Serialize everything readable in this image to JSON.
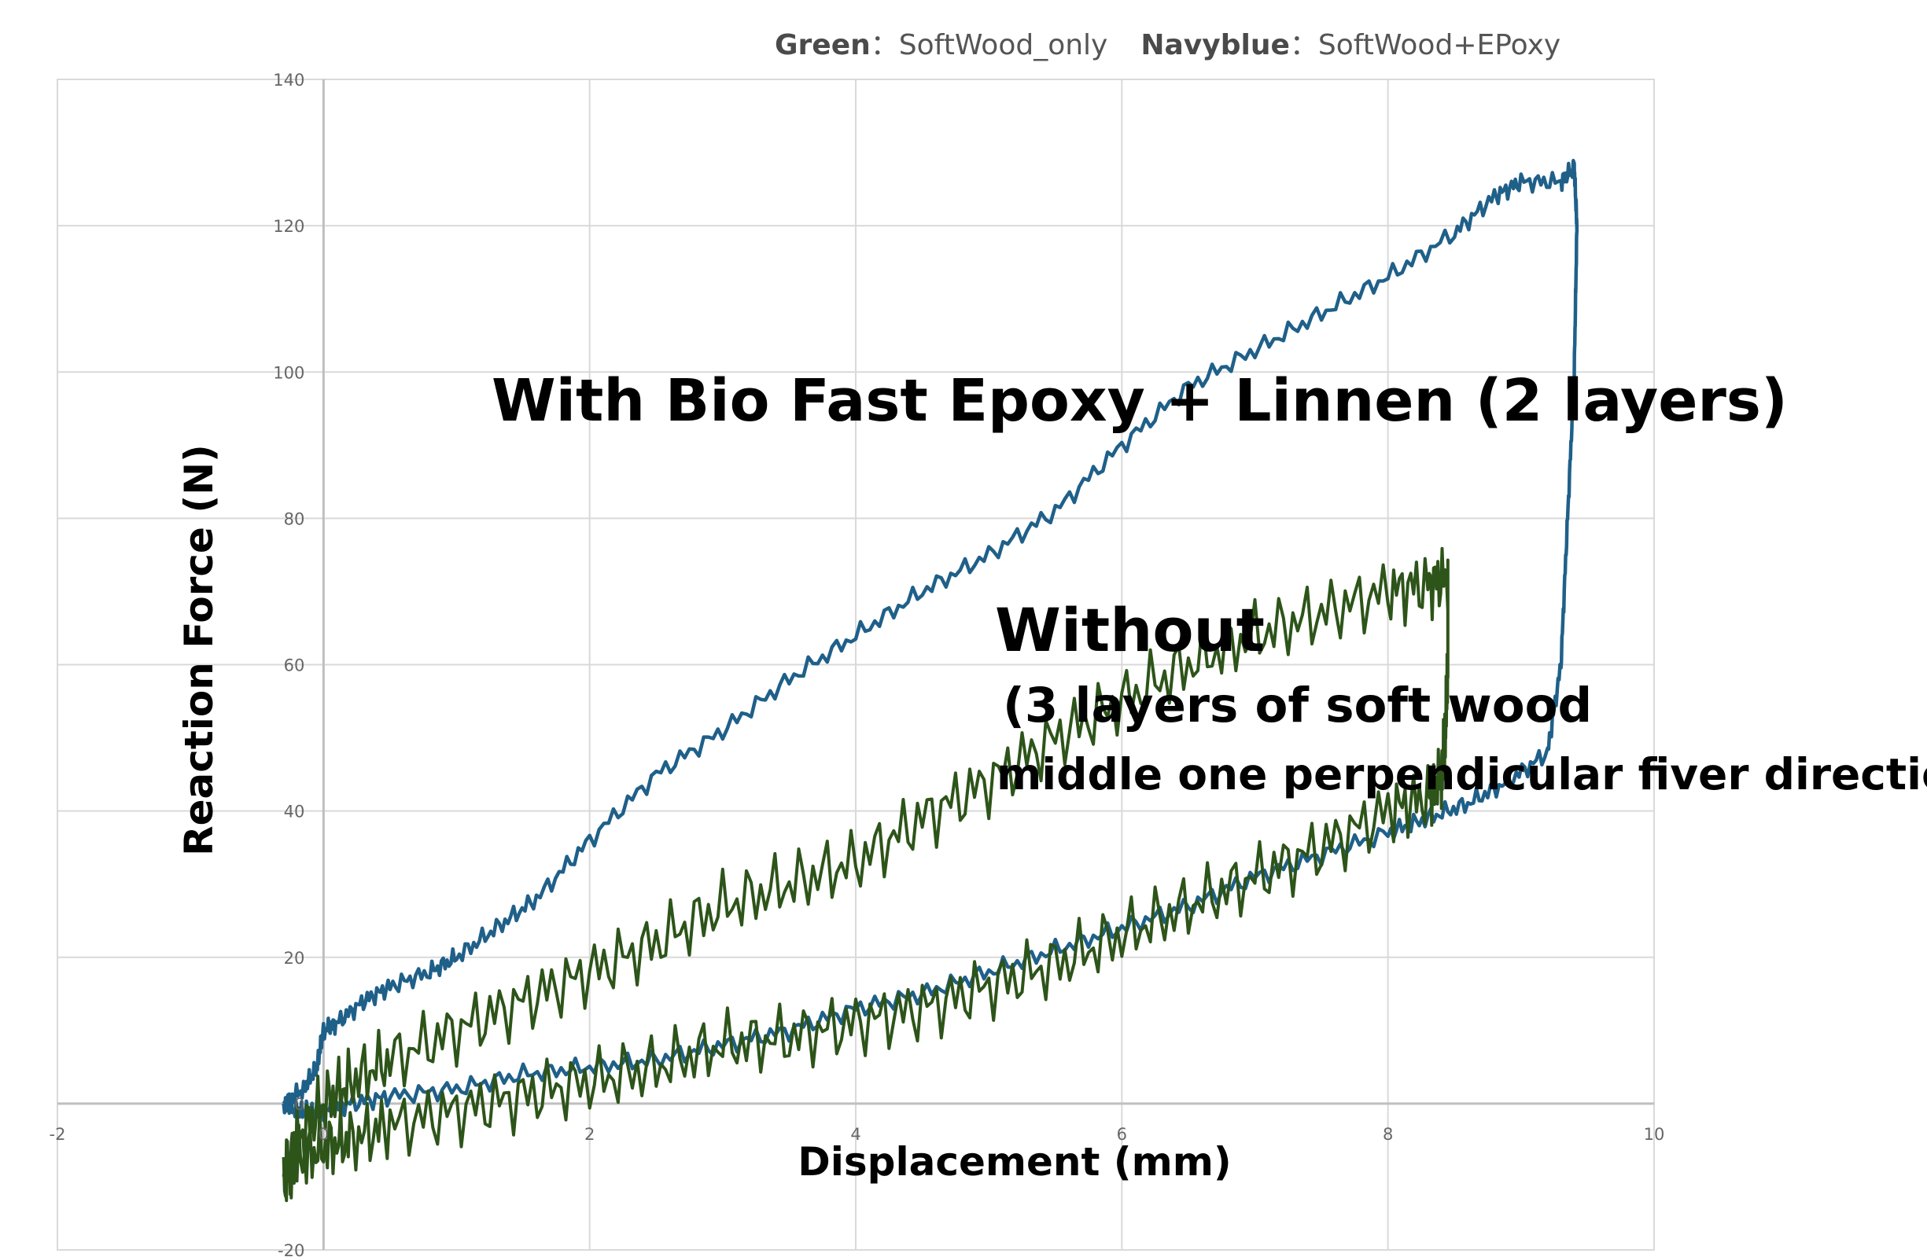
{
  "legend": {
    "green_key": "Green",
    "green_sep": "：",
    "green_text": "SoftWood_only",
    "navy_key": "Navyblue",
    "navy_sep": "：",
    "navy_text": "SoftWood+EPoxy"
  },
  "chart_data": {
    "type": "line",
    "xlabel": "Displacement (mm)",
    "ylabel": "Reaction Force (N)",
    "xlim": [
      -2,
      10
    ],
    "ylim": [
      -20,
      140
    ],
    "xticks": [
      -2,
      0,
      2,
      4,
      6,
      8,
      10
    ],
    "yticks": [
      -20,
      0,
      20,
      40,
      60,
      80,
      100,
      120,
      140
    ],
    "xtick_labels": [
      "-2",
      "0",
      "2",
      "4",
      "6",
      "8",
      "10"
    ],
    "ytick_labels": [
      "-20",
      "0",
      "20",
      "40",
      "60",
      "80",
      "100",
      "120",
      "140"
    ],
    "grid": true,
    "legend_position": "top",
    "annotations": [
      "With Bio Fast Epoxy + Linnen (2 layers)",
      "Without",
      "(3 layers of soft wood",
      "middle one perpendicular fiver direction)"
    ],
    "series": [
      {
        "color": "#1f6089",
        "x": [
          -0.3,
          -0.15,
          -0.05,
          0.0,
          0.1,
          0.3,
          0.5,
          0.8,
          1.0,
          1.3,
          1.6,
          2.0,
          2.5,
          3.0,
          3.5,
          4.0,
          4.5,
          5.0,
          5.5,
          6.0,
          6.5,
          7.0,
          7.5,
          8.0,
          8.5,
          8.8,
          9.0,
          9.3,
          9.4,
          9.42,
          9.4,
          9.35,
          9.3,
          9.2,
          8.9,
          8.6,
          8.3,
          8.0,
          7.5,
          7.0,
          6.5,
          6.0,
          5.5,
          5.0,
          4.5,
          4.0,
          3.5,
          3.0,
          2.5,
          2.0,
          1.5,
          1.0,
          0.5,
          0.2,
          0.0,
          -0.1,
          -0.2,
          -0.3
        ],
        "y": [
          0,
          2,
          5,
          10,
          11,
          14,
          16,
          18,
          20,
          24,
          28,
          36,
          45,
          51,
          58,
          64,
          70,
          75,
          81,
          90,
          98,
          103,
          108,
          113,
          119,
          124,
          126,
          126,
          128,
          120,
          100,
          80,
          60,
          48,
          44,
          41,
          39,
          37,
          34,
          31,
          27,
          24,
          21,
          18,
          15,
          13,
          10,
          8,
          6,
          5,
          4,
          2,
          1,
          0,
          -1,
          -1,
          -1,
          0
        ]
      },
      {
        "color": "#2d5419",
        "x": [
          -0.3,
          -0.2,
          0.0,
          0.2,
          0.5,
          1.0,
          1.5,
          2.0,
          2.5,
          3.0,
          3.5,
          4.0,
          4.5,
          5.0,
          5.5,
          6.0,
          6.5,
          7.0,
          7.5,
          8.0,
          8.3,
          8.45,
          8.45,
          8.43,
          8.4,
          8.3,
          8.0,
          7.5,
          7.0,
          6.5,
          6.0,
          5.5,
          5.0,
          4.5,
          4.0,
          3.5,
          3.0,
          2.5,
          2.0,
          1.5,
          1.0,
          0.5,
          0.2,
          0.0,
          -0.2,
          -0.3
        ],
        "y": [
          -10,
          -5,
          0,
          3,
          6,
          10,
          14,
          18,
          22,
          27,
          30,
          33,
          39,
          44,
          50,
          55,
          60,
          64,
          67,
          70,
          71,
          72,
          60,
          50,
          44,
          42,
          40,
          35,
          31,
          27,
          23,
          19,
          16,
          13,
          11,
          9,
          8,
          5,
          3,
          1,
          -1,
          -3,
          -5,
          -6,
          -8,
          -10
        ]
      }
    ]
  }
}
